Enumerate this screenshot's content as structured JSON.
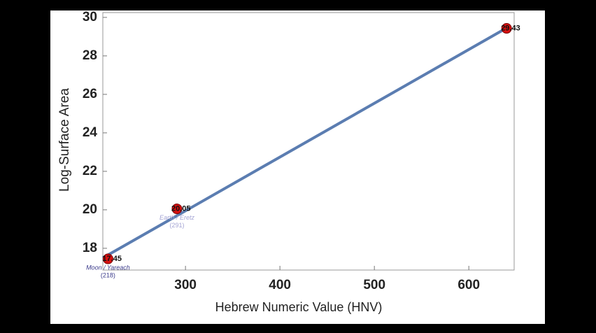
{
  "chart_data": {
    "type": "scatter",
    "xlabel": "Hebrew Numeric Value (HNV)",
    "ylabel": "Log-Surface Area",
    "xlim": [
      212.5,
      648
    ],
    "ylim": [
      16.87,
      30.25
    ],
    "xticks": [
      300,
      400,
      500,
      600
    ],
    "yticks": [
      18,
      20,
      22,
      24,
      26,
      28,
      30
    ],
    "series": [
      {
        "x": [
          218,
          291,
          640
        ],
        "values": [
          17.45,
          20.05,
          29.43
        ],
        "color": "#d81010",
        "annotations": [
          {
            "text": "Moon / Yareach",
            "sub": "(218)",
            "color": "#3c3c8c"
          },
          {
            "text": "Earth / Eretz",
            "sub": "(291)",
            "color": "#a4a4d4"
          },
          null
        ]
      }
    ],
    "fit": {
      "x": [
        212.5,
        640
      ],
      "values": [
        17.5,
        29.45
      ],
      "color": "#5b7db1"
    }
  }
}
